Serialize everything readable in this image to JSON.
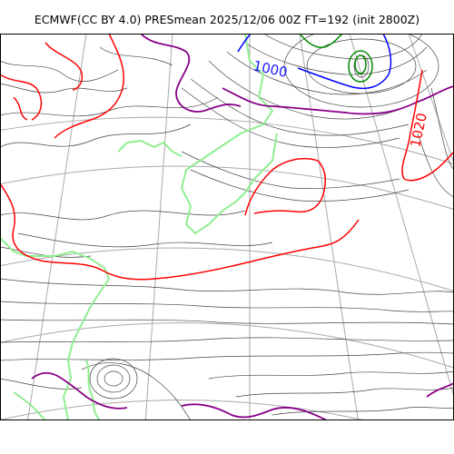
{
  "title": "ECMWF(CC BY 4.0) PRESmean 2025/12/06 00Z FT=192 (init 2800Z)",
  "contour_labels": [
    {
      "text": "1000",
      "color": "#1a1aff"
    },
    {
      "text": "1020",
      "color": "#ff0000"
    }
  ],
  "colors": {
    "isobar_thin": "#444444",
    "isobar_1000": "#0000ff",
    "isobar_1020": "#ff0000",
    "isobar_1012": "#880088",
    "low_center": "#008800",
    "coastline": "#90ee90",
    "graticule": "#aaaaaa",
    "frame": "#000000"
  }
}
